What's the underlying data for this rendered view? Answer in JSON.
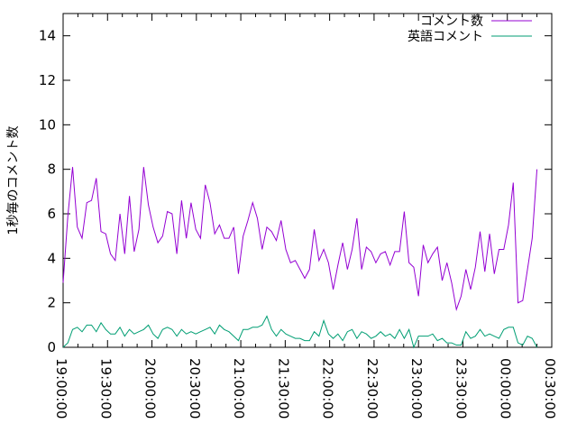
{
  "chart_data": {
    "type": "line",
    "title": "",
    "xlabel": "",
    "ylabel": "1秒毎のコメント数",
    "xlim": [
      "19:00:00",
      "00:30:00"
    ],
    "ylim": [
      0,
      15
    ],
    "x_ticks": [
      "19:00:00",
      "19:30:00",
      "20:00:00",
      "20:30:00",
      "21:00:00",
      "21:30:00",
      "22:00:00",
      "22:30:00",
      "23:00:00",
      "23:30:00",
      "00:00:00",
      "00:30:00"
    ],
    "y_ticks": [
      "0",
      "2",
      "4",
      "6",
      "8",
      "10",
      "12",
      "14"
    ],
    "grid": false,
    "legend_position": "top-right",
    "series": [
      {
        "name": "コメント数",
        "color": "#9400d3",
        "values": [
          2.9,
          5.9,
          8.1,
          5.4,
          4.9,
          6.5,
          6.6,
          7.6,
          5.2,
          5.1,
          4.2,
          3.9,
          6.0,
          4.2,
          6.8,
          4.3,
          5.3,
          8.1,
          6.4,
          5.4,
          4.7,
          5.0,
          6.1,
          6.0,
          4.2,
          6.6,
          4.9,
          6.5,
          5.3,
          4.9,
          7.3,
          6.5,
          5.1,
          5.5,
          4.9,
          4.9,
          5.4,
          3.3,
          5.0,
          5.7,
          6.5,
          5.8,
          4.4,
          5.4,
          5.2,
          4.8,
          5.7,
          4.4,
          3.8,
          3.9,
          3.5,
          3.1,
          3.5,
          5.3,
          3.9,
          4.4,
          3.8,
          2.6,
          3.7,
          4.7,
          3.5,
          4.4,
          5.8,
          3.5,
          4.5,
          4.3,
          3.8,
          4.2,
          4.3,
          3.7,
          4.3,
          4.3,
          6.1,
          3.8,
          3.6,
          2.3,
          4.6,
          3.8,
          4.2,
          4.5,
          3.0,
          3.8,
          2.9,
          1.7,
          2.3,
          3.5,
          2.6,
          3.6,
          5.2,
          3.4,
          5.1,
          3.3,
          4.4,
          4.4,
          5.5,
          7.4,
          2.0,
          2.1,
          3.5,
          4.9,
          8.0
        ]
      },
      {
        "name": "英語コメント",
        "color": "#009e73",
        "values": [
          0.0,
          0.2,
          0.8,
          0.9,
          0.7,
          1.0,
          1.0,
          0.7,
          1.1,
          0.8,
          0.6,
          0.6,
          0.9,
          0.5,
          0.8,
          0.6,
          0.7,
          0.8,
          1.0,
          0.6,
          0.4,
          0.8,
          0.9,
          0.8,
          0.5,
          0.8,
          0.6,
          0.7,
          0.6,
          0.7,
          0.8,
          0.9,
          0.6,
          1.0,
          0.8,
          0.7,
          0.5,
          0.3,
          0.8,
          0.8,
          0.9,
          0.9,
          1.0,
          1.4,
          0.8,
          0.5,
          0.8,
          0.6,
          0.5,
          0.4,
          0.4,
          0.3,
          0.3,
          0.7,
          0.5,
          1.2,
          0.6,
          0.4,
          0.6,
          0.3,
          0.7,
          0.8,
          0.4,
          0.7,
          0.6,
          0.4,
          0.5,
          0.7,
          0.5,
          0.6,
          0.4,
          0.8,
          0.4,
          0.8,
          0.0,
          0.5,
          0.5,
          0.5,
          0.6,
          0.3,
          0.4,
          0.2,
          0.2,
          0.1,
          0.1,
          0.7,
          0.4,
          0.5,
          0.8,
          0.5,
          0.6,
          0.5,
          0.4,
          0.8,
          0.9,
          0.9,
          0.2,
          0.1,
          0.5,
          0.4,
          0.0
        ]
      }
    ]
  }
}
